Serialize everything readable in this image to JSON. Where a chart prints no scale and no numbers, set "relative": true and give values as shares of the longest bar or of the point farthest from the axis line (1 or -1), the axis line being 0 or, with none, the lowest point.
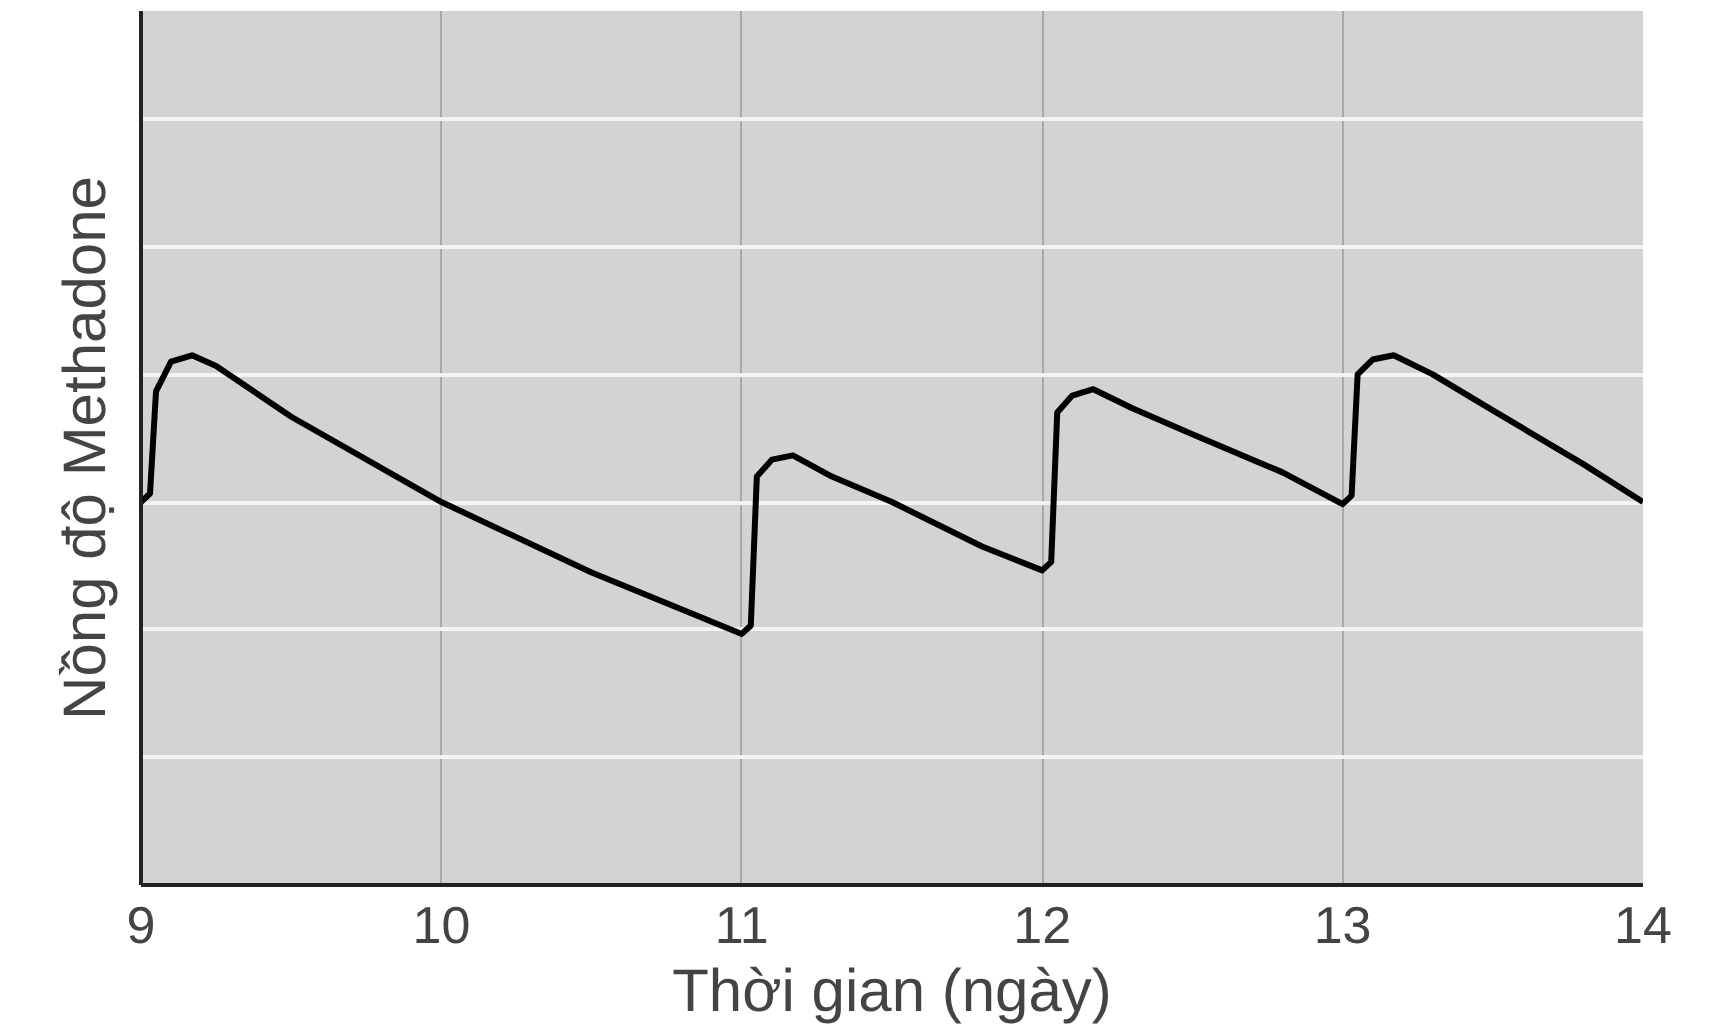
{
  "chart_data": {
    "type": "line",
    "xlabel": "Thời gian (ngày)",
    "ylabel": "Nồng độ Methadone",
    "relative": true,
    "xlim": [
      9,
      14
    ],
    "xticks": [
      9,
      10,
      11,
      12,
      13,
      14
    ],
    "grid": true,
    "marker": "none",
    "line_style": "solid",
    "series": [
      {
        "color": "#000000",
        "x": [
          9.0,
          9.03,
          9.05,
          9.1,
          9.17,
          9.25,
          9.5,
          10.0,
          10.5,
          11.0,
          11.03,
          11.05,
          11.1,
          11.17,
          11.3,
          11.5,
          11.8,
          12.0,
          12.03,
          12.05,
          12.1,
          12.17,
          12.3,
          12.5,
          12.8,
          13.0,
          13.03,
          13.05,
          13.1,
          13.17,
          13.3,
          13.5,
          13.8,
          14.0
        ],
        "values": [
          0.723,
          0.739,
          0.932,
          0.988,
          1.0,
          0.98,
          0.884,
          0.723,
          0.59,
          0.474,
          0.49,
          0.771,
          0.803,
          0.811,
          0.771,
          0.723,
          0.639,
          0.594,
          0.61,
          0.892,
          0.924,
          0.936,
          0.9,
          0.851,
          0.779,
          0.719,
          0.735,
          0.964,
          0.992,
          1.0,
          0.964,
          0.896,
          0.795,
          0.723
        ]
      }
    ]
  }
}
